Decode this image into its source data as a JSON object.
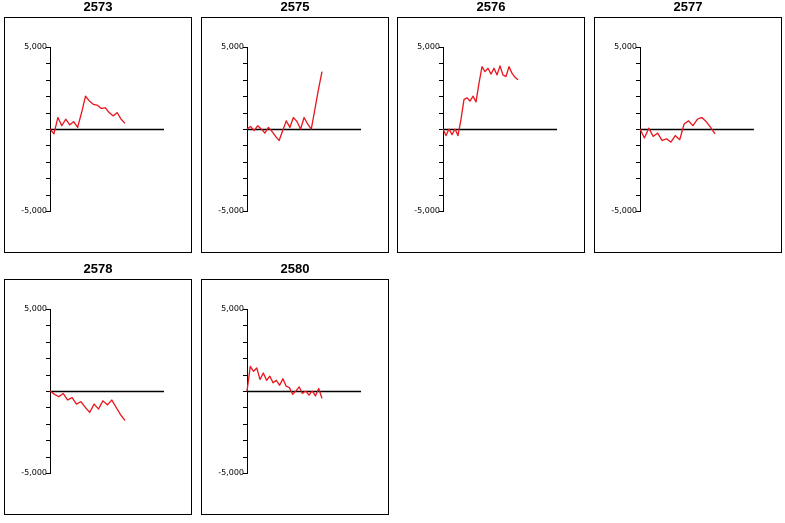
{
  "chart_data": [
    {
      "type": "line",
      "title": "2573",
      "ylim": [
        -5000,
        5000
      ],
      "ytick_labels": [
        "5,000",
        "-5,000"
      ],
      "series": [
        {
          "color": "#e8141b",
          "values": [
            0,
            -300,
            700,
            200,
            600,
            250,
            450,
            100,
            1000,
            2000,
            1700,
            1500,
            1450,
            1250,
            1300,
            1000,
            800,
            1000,
            600,
            350
          ]
        }
      ]
    },
    {
      "type": "line",
      "title": "2575",
      "ylim": [
        -5000,
        5000
      ],
      "ytick_labels": [
        "5,000",
        "-5,000"
      ],
      "series": [
        {
          "color": "#e8141b",
          "values": [
            0,
            150,
            -100,
            200,
            0,
            -250,
            100,
            -150,
            -450,
            -700,
            -100,
            500,
            100,
            700,
            450,
            0,
            700,
            300,
            0,
            1200,
            2400,
            3500
          ]
        }
      ]
    },
    {
      "type": "line",
      "title": "2576",
      "ylim": [
        -5000,
        5000
      ],
      "ytick_labels": [
        "5,000",
        "-5,000"
      ],
      "series": [
        {
          "color": "#e8141b",
          "values": [
            0,
            -400,
            0,
            -350,
            0,
            -400,
            600,
            1800,
            1900,
            1700,
            2000,
            1650,
            2800,
            3800,
            3500,
            3700,
            3350,
            3700,
            3300,
            3850,
            3300,
            3200,
            3800,
            3400,
            3150,
            3000
          ]
        }
      ]
    },
    {
      "type": "line",
      "title": "2577",
      "ylim": [
        -5000,
        5000
      ],
      "ytick_labels": [
        "5,000",
        "-5,000"
      ],
      "series": [
        {
          "color": "#e8141b",
          "values": [
            0,
            -550,
            50,
            -450,
            -250,
            -700,
            -600,
            -800,
            -400,
            -650,
            300,
            500,
            200,
            600,
            700,
            450,
            100,
            -300
          ]
        }
      ]
    },
    {
      "type": "line",
      "title": "2578",
      "ylim": [
        -5000,
        5000
      ],
      "ytick_labels": [
        "5,000",
        "-5,000"
      ],
      "series": [
        {
          "color": "#e8141b",
          "values": [
            0,
            -200,
            -350,
            -150,
            -550,
            -400,
            -800,
            -650,
            -1000,
            -1300,
            -800,
            -1100,
            -600,
            -850,
            -550,
            -1000,
            -1450,
            -1800
          ]
        }
      ]
    },
    {
      "type": "line",
      "title": "2580",
      "ylim": [
        -5000,
        5000
      ],
      "ytick_labels": [
        "5,000",
        "-5,000"
      ],
      "series": [
        {
          "color": "#e8141b",
          "values": [
            0,
            1500,
            1200,
            1400,
            700,
            1100,
            650,
            900,
            500,
            650,
            350,
            750,
            300,
            200,
            -200,
            0,
            250,
            -150,
            0,
            -250,
            0,
            -300,
            150,
            -450
          ]
        }
      ]
    }
  ]
}
